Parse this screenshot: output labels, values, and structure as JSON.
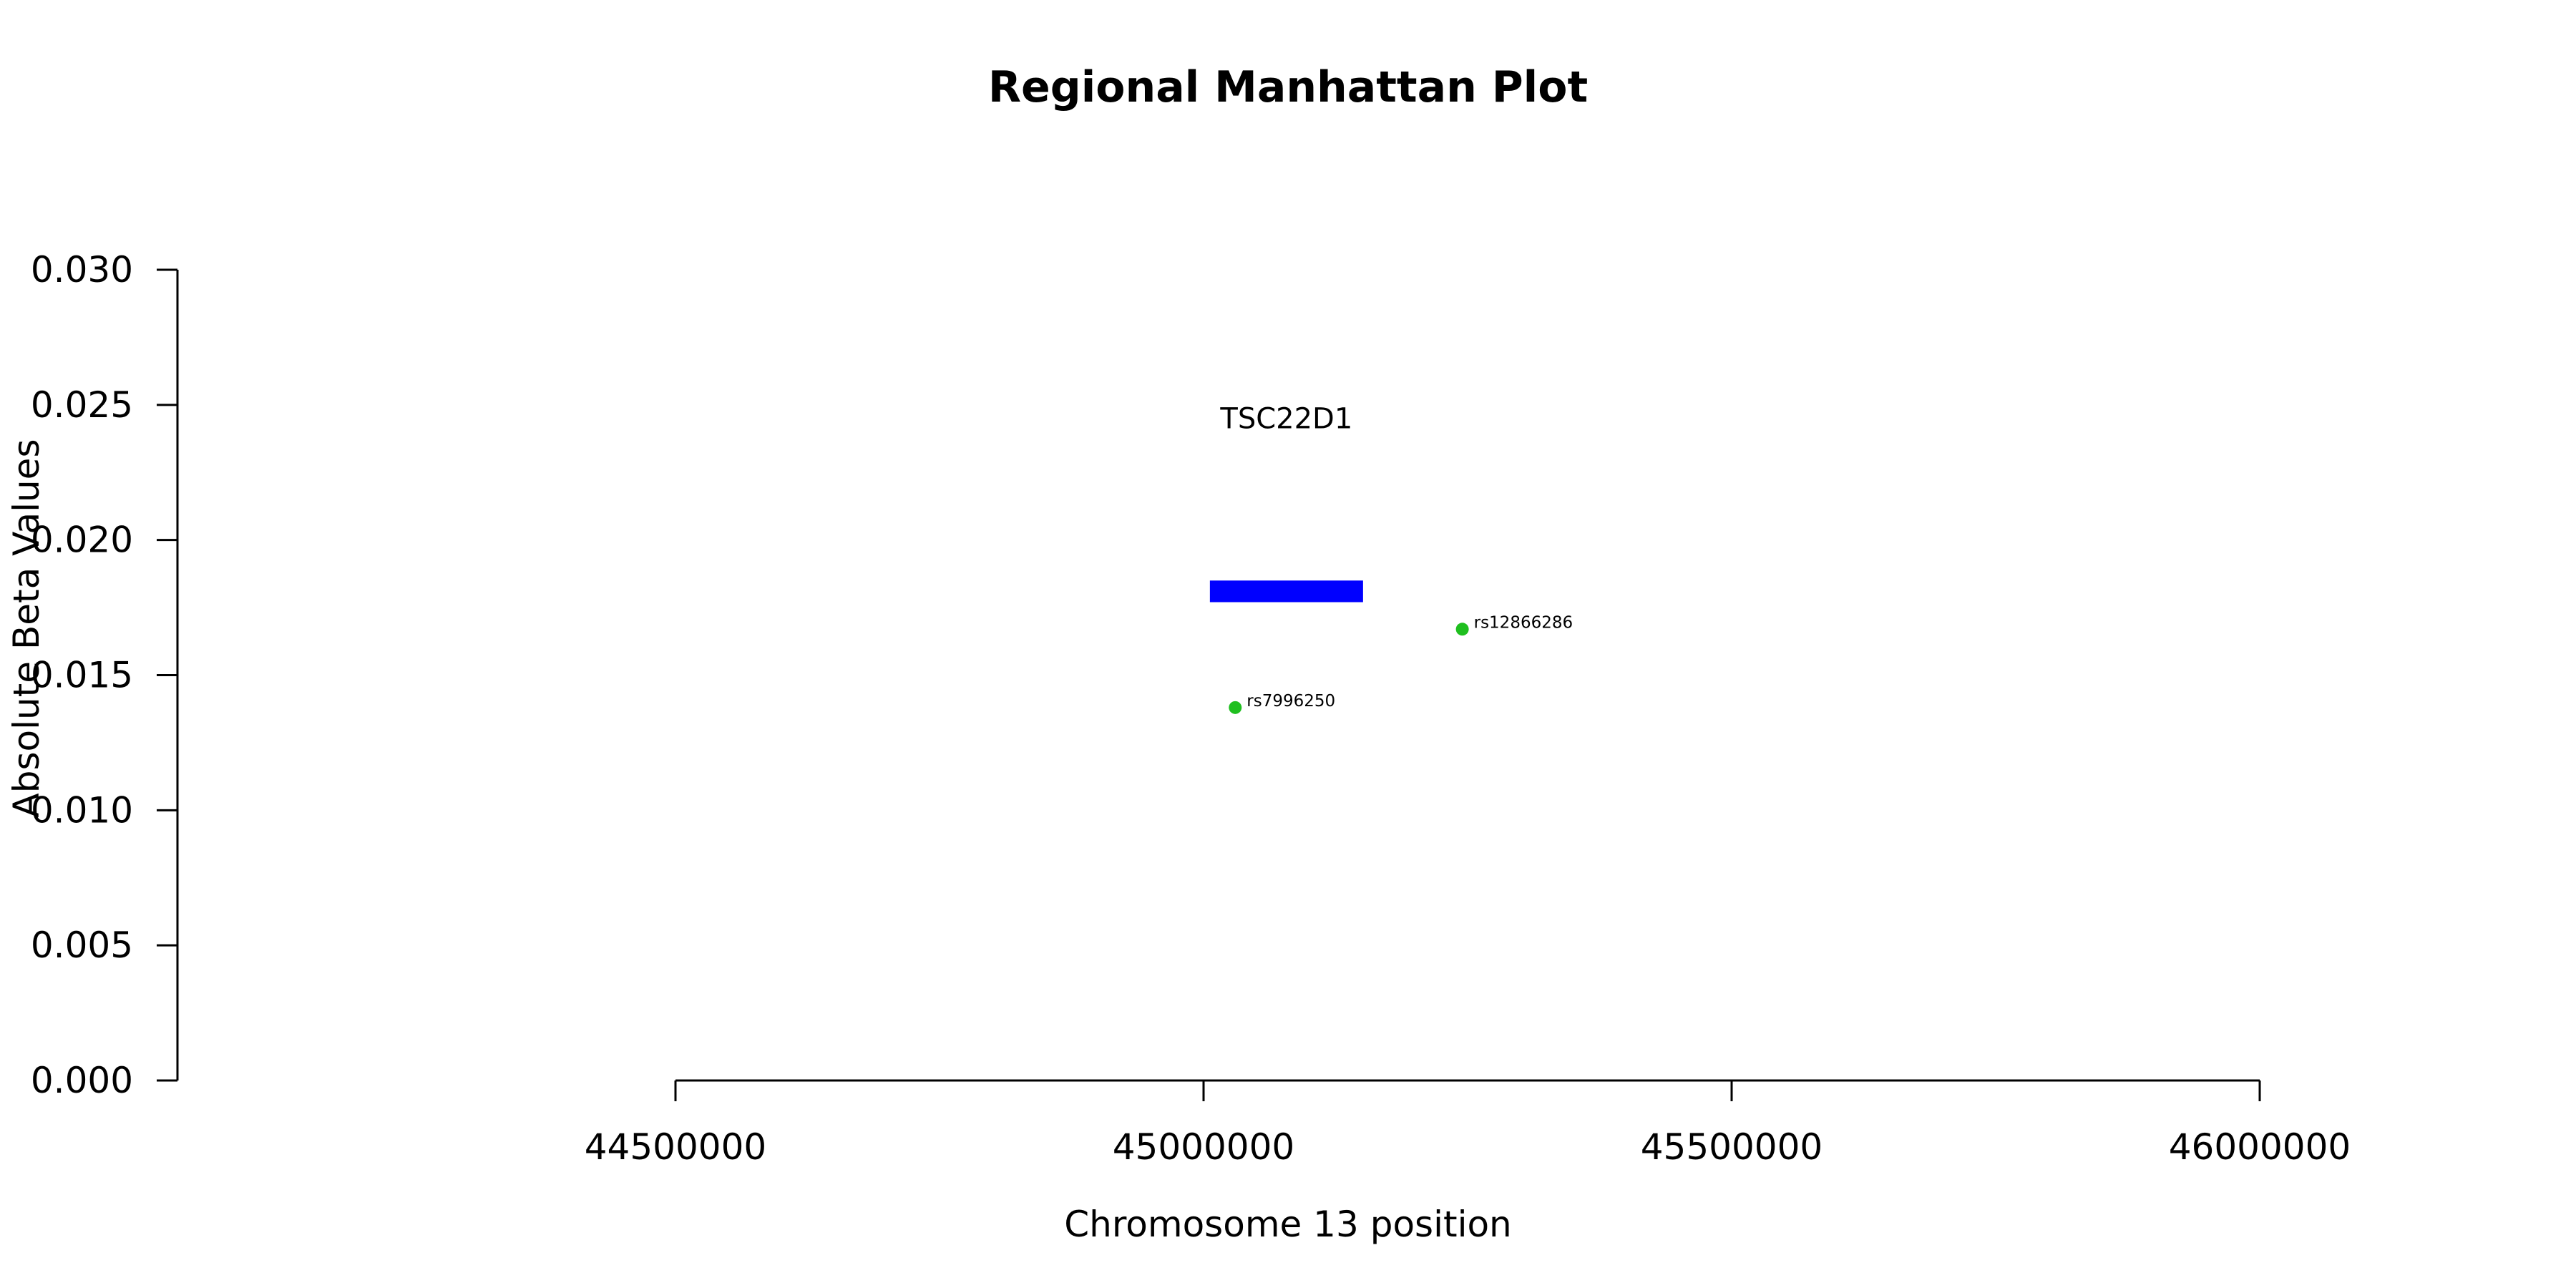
{
  "chart_data": {
    "type": "scatter",
    "title": "Regional Manhattan Plot",
    "xlabel": "Chromosome 13 position",
    "ylabel": "Absolute Beta Values",
    "xlim": [
      44000000,
      46300000
    ],
    "ylim": [
      0.0,
      0.03
    ],
    "x_ticks": [
      44500000,
      45000000,
      45500000,
      46000000
    ],
    "x_tick_labels": [
      "44500000",
      "45000000",
      "45500000",
      "46000000"
    ],
    "y_ticks": [
      0.0,
      0.005,
      0.01,
      0.015,
      0.02,
      0.025,
      0.03
    ],
    "y_tick_labels": [
      "0.000",
      "0.005",
      "0.010",
      "0.015",
      "0.020",
      "0.025",
      "0.030"
    ],
    "grid": false,
    "point_color": "#1fbf1f",
    "points": [
      {
        "label": "rs7996250",
        "x": 45030000,
        "y": 0.0138
      },
      {
        "label": "rs12866286",
        "x": 45245000,
        "y": 0.0167
      }
    ],
    "genes": [
      {
        "name": "TSC22D1",
        "start": 45006000,
        "end": 45151000,
        "y": 0.0181,
        "thickness": 0.0008,
        "color": "#0000ff",
        "label_y": 0.0245
      }
    ]
  }
}
